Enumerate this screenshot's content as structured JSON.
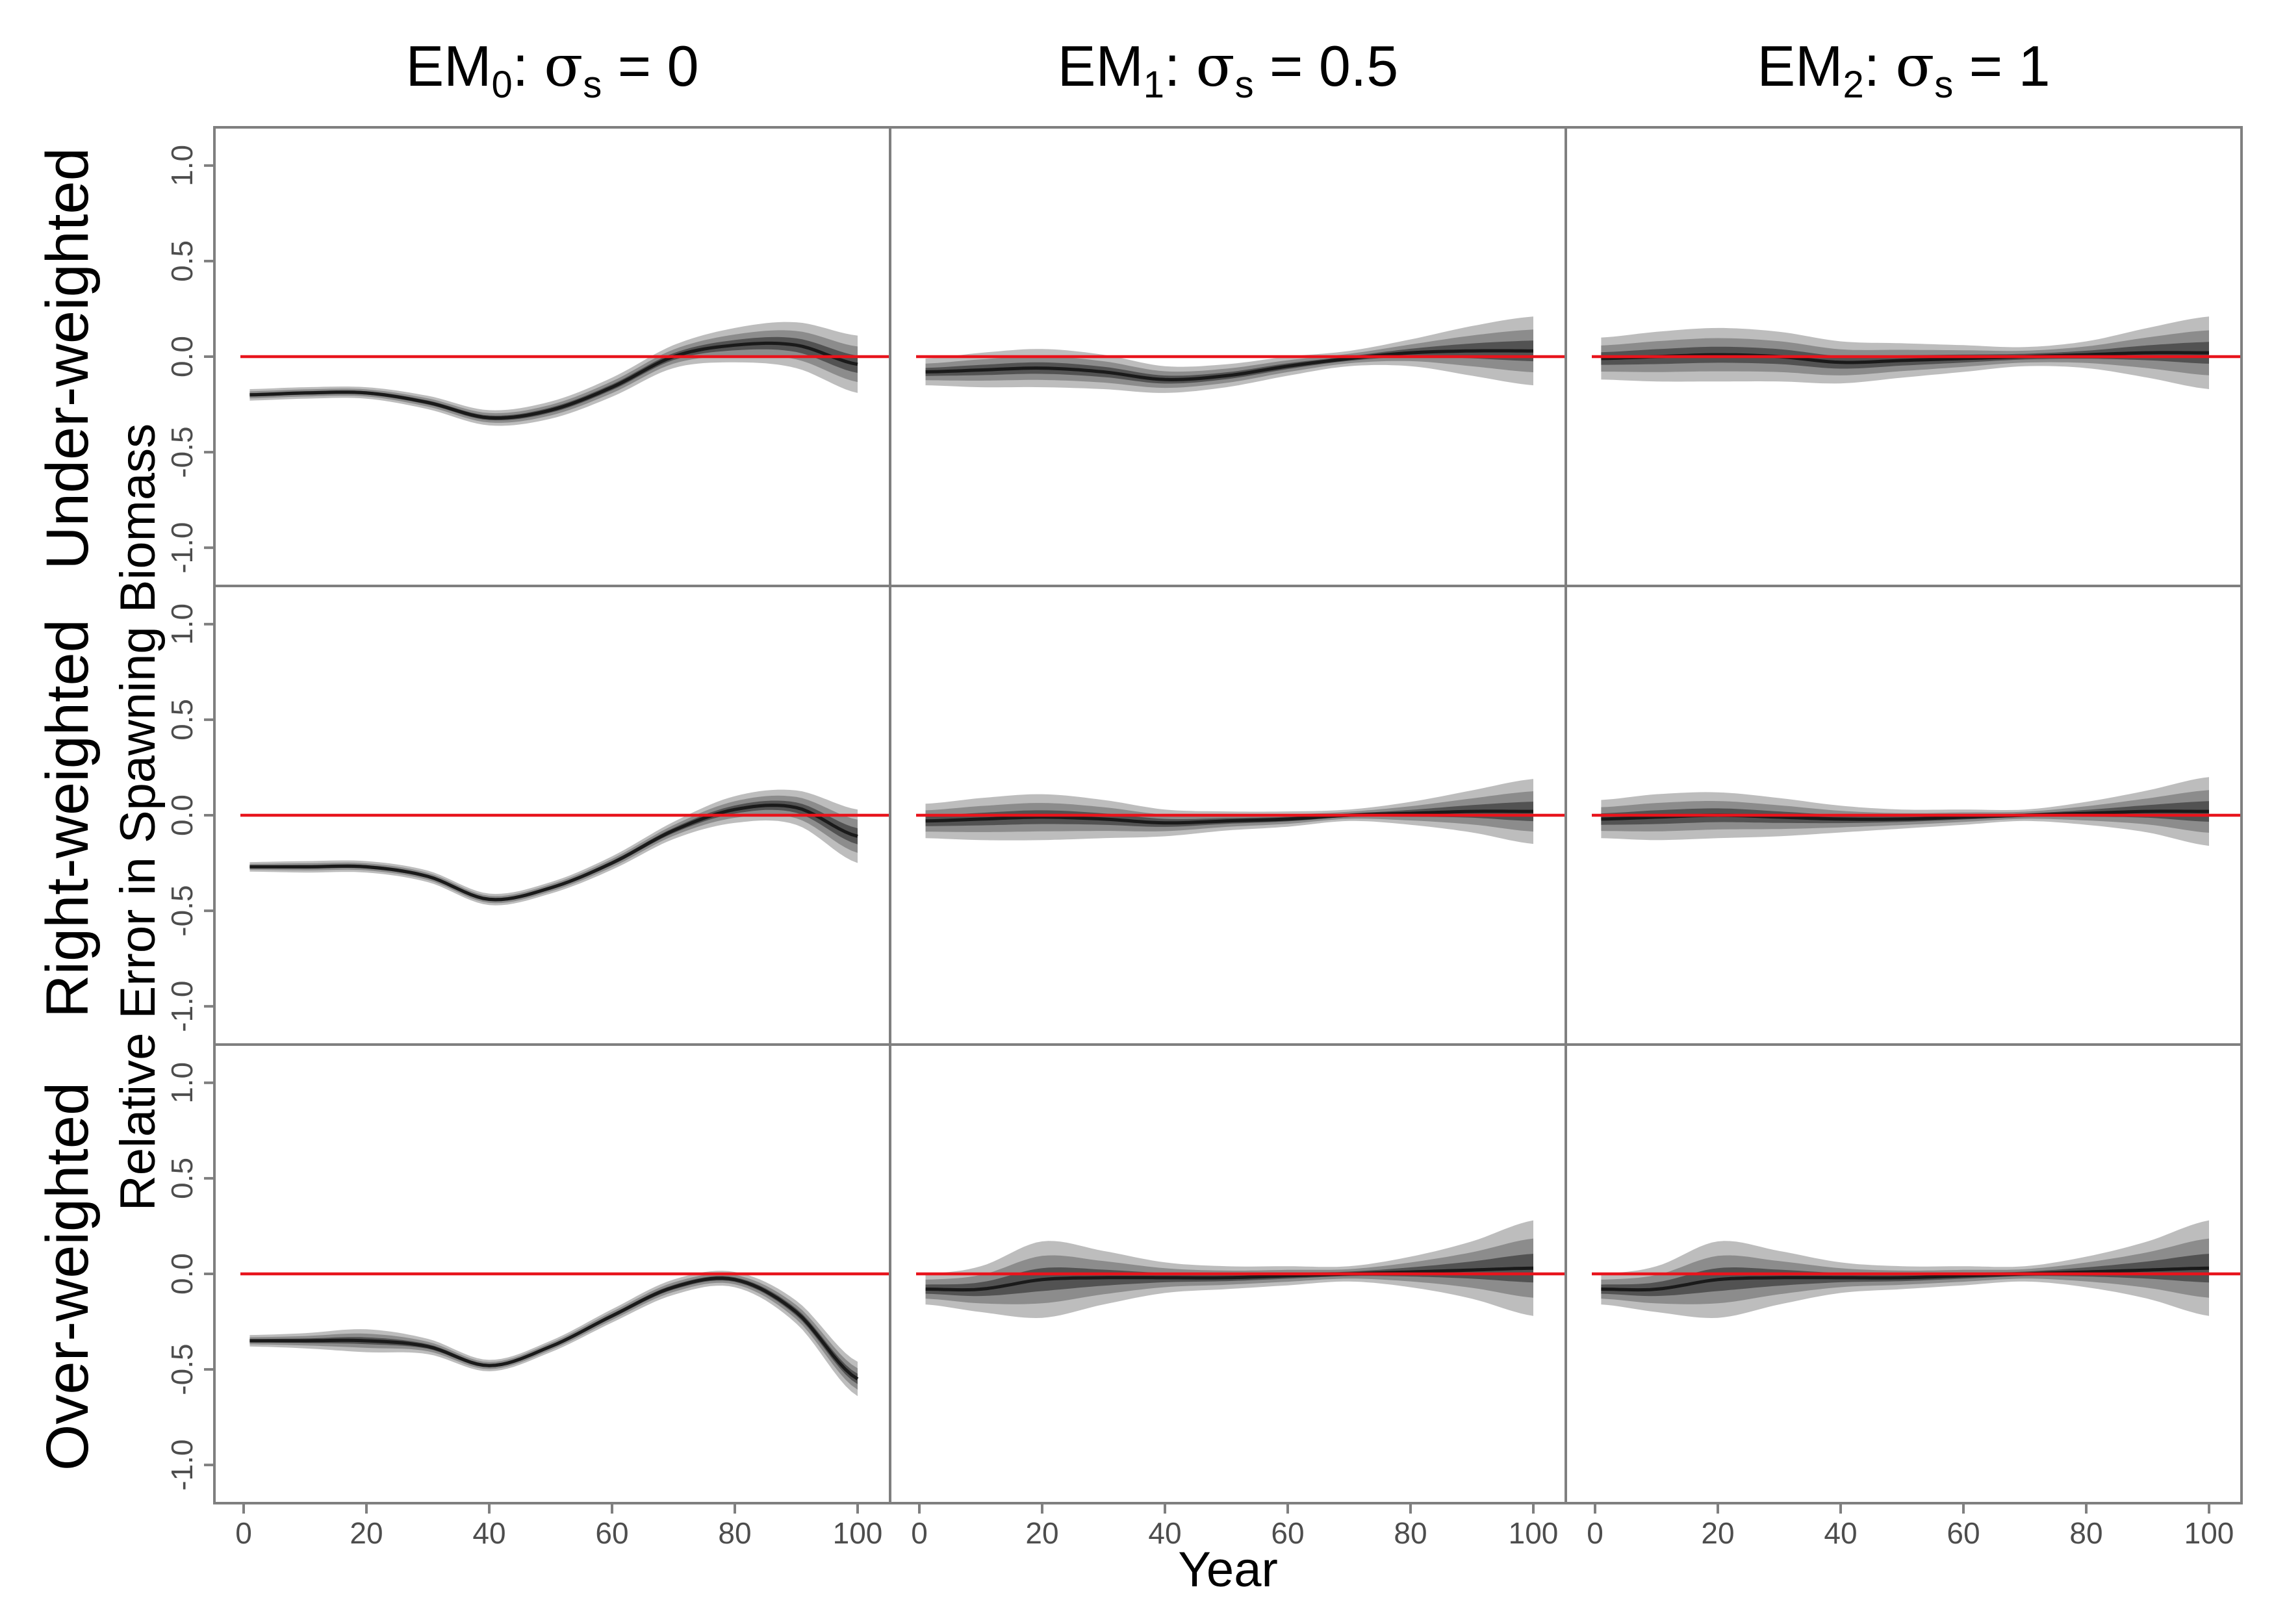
{
  "chart_data": {
    "type": "area",
    "layout": "3x3 facet grid, quantile ribbons with median line",
    "ylabel": "Relative Error in Spawning Biomass",
    "xlabel": "Year",
    "xlim": [
      0,
      100
    ],
    "ylim": [
      -1.2,
      1.2
    ],
    "x_ticks": [
      0,
      20,
      40,
      60,
      80,
      100
    ],
    "y_ticks": [
      "-1.0",
      "-0.5",
      "0.0",
      "0.5",
      "1.0"
    ],
    "reference_line": 0,
    "colors": {
      "outer_band": "#bdbdbd",
      "middle_band": "#8c8c8c",
      "inner_band": "#525252",
      "median": "#1a1a1a",
      "reference": "#e8141c",
      "frame": "#7f7f7f"
    },
    "columns": [
      {
        "label_main": "EM",
        "label_sub": "0",
        "label_colon": ":",
        "label_sigma": "σ",
        "label_sigma_sub": "s",
        "label_rest": " = 0"
      },
      {
        "label_main": "EM",
        "label_sub": "1",
        "label_colon": ":",
        "label_sigma": "σ",
        "label_sigma_sub": "s",
        "label_rest": " = 0.5"
      },
      {
        "label_main": "EM",
        "label_sub": "2",
        "label_colon": ":",
        "label_sigma": "σ",
        "label_sigma_sub": "s",
        "label_rest": " = 1"
      }
    ],
    "rows": [
      "Under-weighted",
      "Right-weighted",
      "Over-weighted"
    ],
    "x": [
      1,
      10,
      20,
      30,
      40,
      50,
      60,
      70,
      80,
      90,
      100
    ],
    "panels": [
      {
        "row": 0,
        "col": 0,
        "median": [
          -0.2,
          -0.19,
          -0.19,
          -0.24,
          -0.32,
          -0.28,
          -0.16,
          0.0,
          0.06,
          0.06,
          -0.04
        ],
        "spread": [
          0.03,
          0.03,
          0.03,
          0.035,
          0.04,
          0.045,
          0.05,
          0.06,
          0.09,
          0.12,
          0.15
        ]
      },
      {
        "row": 0,
        "col": 1,
        "median": [
          -0.08,
          -0.07,
          -0.06,
          -0.08,
          -0.12,
          -0.1,
          -0.05,
          -0.01,
          0.02,
          0.03,
          0.03
        ],
        "spread": [
          0.07,
          0.09,
          0.1,
          0.09,
          0.07,
          0.06,
          0.05,
          0.04,
          0.07,
          0.13,
          0.18
        ]
      },
      {
        "row": 0,
        "col": 2,
        "median": [
          -0.01,
          0.0,
          0.01,
          0.0,
          -0.03,
          -0.02,
          -0.01,
          0.0,
          0.01,
          0.02,
          0.02
        ],
        "spread": [
          0.11,
          0.13,
          0.14,
          0.13,
          0.11,
          0.09,
          0.07,
          0.05,
          0.07,
          0.13,
          0.19
        ]
      },
      {
        "row": 1,
        "col": 0,
        "median": [
          -0.27,
          -0.27,
          -0.27,
          -0.32,
          -0.44,
          -0.38,
          -0.25,
          -0.08,
          0.03,
          0.04,
          -0.11
        ],
        "spread": [
          0.025,
          0.03,
          0.03,
          0.03,
          0.03,
          0.03,
          0.035,
          0.045,
          0.07,
          0.09,
          0.14
        ]
      },
      {
        "row": 1,
        "col": 1,
        "median": [
          -0.03,
          -0.02,
          -0.01,
          -0.02,
          -0.04,
          -0.03,
          -0.02,
          0.0,
          0.01,
          0.02,
          0.02
        ],
        "spread": [
          0.09,
          0.11,
          0.12,
          0.1,
          0.07,
          0.05,
          0.04,
          0.03,
          0.06,
          0.11,
          0.17
        ]
      },
      {
        "row": 1,
        "col": 2,
        "median": [
          -0.02,
          -0.01,
          0.0,
          -0.01,
          -0.02,
          -0.02,
          -0.01,
          0.0,
          0.01,
          0.02,
          0.02
        ],
        "spread": [
          0.1,
          0.12,
          0.12,
          0.1,
          0.07,
          0.05,
          0.04,
          0.03,
          0.06,
          0.11,
          0.18
        ]
      },
      {
        "row": 2,
        "col": 0,
        "median": [
          -0.35,
          -0.35,
          -0.35,
          -0.38,
          -0.48,
          -0.38,
          -0.22,
          -0.07,
          -0.03,
          -0.2,
          -0.55
        ],
        "spread": [
          0.03,
          0.04,
          0.06,
          0.04,
          0.03,
          0.03,
          0.035,
          0.04,
          0.04,
          0.06,
          0.09
        ]
      },
      {
        "row": 2,
        "col": 1,
        "median": [
          -0.08,
          -0.08,
          -0.03,
          -0.02,
          -0.02,
          -0.02,
          -0.01,
          0.0,
          0.01,
          0.02,
          0.03
        ],
        "spread": [
          0.08,
          0.12,
          0.2,
          0.14,
          0.08,
          0.06,
          0.05,
          0.04,
          0.08,
          0.15,
          0.25
        ]
      },
      {
        "row": 2,
        "col": 2,
        "median": [
          -0.08,
          -0.08,
          -0.03,
          -0.02,
          -0.02,
          -0.02,
          -0.01,
          0.0,
          0.01,
          0.02,
          0.03
        ],
        "spread": [
          0.08,
          0.12,
          0.2,
          0.14,
          0.08,
          0.06,
          0.05,
          0.04,
          0.08,
          0.15,
          0.25
        ]
      }
    ]
  }
}
